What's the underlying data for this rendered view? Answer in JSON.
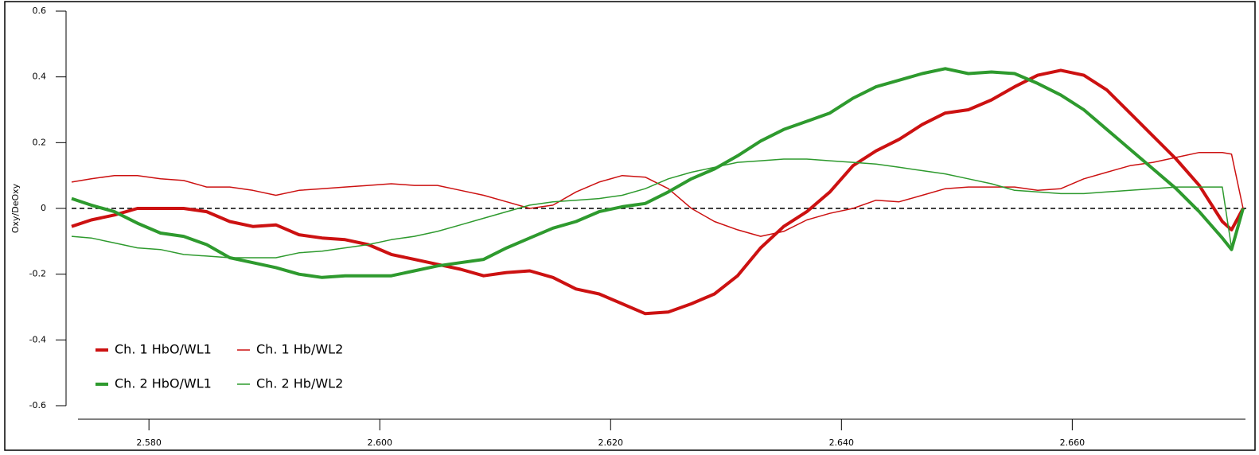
{
  "chart_data": {
    "type": "line",
    "y_label": "Oxy/DeOxy",
    "x": [
      2.5733,
      2.575,
      2.577,
      2.579,
      2.581,
      2.583,
      2.585,
      2.587,
      2.589,
      2.591,
      2.593,
      2.595,
      2.597,
      2.599,
      2.601,
      2.603,
      2.605,
      2.607,
      2.609,
      2.611,
      2.613,
      2.615,
      2.617,
      2.619,
      2.621,
      2.623,
      2.625,
      2.627,
      2.629,
      2.631,
      2.633,
      2.635,
      2.637,
      2.639,
      2.641,
      2.643,
      2.645,
      2.647,
      2.649,
      2.651,
      2.653,
      2.655,
      2.657,
      2.659,
      2.661,
      2.663,
      2.665,
      2.667,
      2.669,
      2.671,
      2.673,
      2.6738,
      2.6748
    ],
    "series": [
      {
        "name": "Ch. 1 HbO/WL1",
        "color": "#cc1111",
        "width": 4,
        "values": [
          -0.055,
          -0.035,
          -0.02,
          0,
          0,
          0,
          -0.01,
          -0.04,
          -0.055,
          -0.05,
          -0.08,
          -0.09,
          -0.095,
          -0.11,
          -0.14,
          -0.155,
          -0.17,
          -0.185,
          -0.205,
          -0.195,
          -0.19,
          -0.21,
          -0.245,
          -0.26,
          -0.29,
          -0.32,
          -0.315,
          -0.29,
          -0.26,
          -0.205,
          -0.12,
          -0.055,
          -0.01,
          0.05,
          0.13,
          0.175,
          0.21,
          0.255,
          0.29,
          0.3,
          0.33,
          0.37,
          0.405,
          0.42,
          0.405,
          0.36,
          0.29,
          0.22,
          0.15,
          0.07,
          -0.04,
          -0.065,
          0
        ]
      },
      {
        "name": "Ch. 1 Hb/WL2",
        "color": "#cc1111",
        "width": 1.5,
        "values": [
          0.08,
          0.09,
          0.1,
          0.1,
          0.09,
          0.085,
          0.065,
          0.065,
          0.055,
          0.04,
          0.055,
          0.06,
          0.065,
          0.07,
          0.075,
          0.07,
          0.07,
          0.055,
          0.04,
          0.02,
          0,
          0.01,
          0.05,
          0.08,
          0.1,
          0.095,
          0.06,
          0,
          -0.04,
          -0.065,
          -0.085,
          -0.07,
          -0.035,
          -0.015,
          0,
          0.025,
          0.02,
          0.04,
          0.06,
          0.065,
          0.065,
          0.065,
          0.055,
          0.06,
          0.09,
          0.11,
          0.13,
          0.14,
          0.155,
          0.17,
          0.17,
          0.165,
          0
        ]
      },
      {
        "name": "Ch. 2 HbO/WL1",
        "color": "#2e9a2e",
        "width": 4,
        "values": [
          0.03,
          0.01,
          -0.01,
          -0.045,
          -0.075,
          -0.085,
          -0.11,
          -0.15,
          -0.165,
          -0.18,
          -0.2,
          -0.21,
          -0.205,
          -0.205,
          -0.205,
          -0.19,
          -0.175,
          -0.165,
          -0.155,
          -0.12,
          -0.09,
          -0.06,
          -0.04,
          -0.01,
          0.005,
          0.015,
          0.05,
          0.09,
          0.12,
          0.16,
          0.205,
          0.24,
          0.265,
          0.29,
          0.335,
          0.37,
          0.39,
          0.41,
          0.425,
          0.41,
          0.415,
          0.41,
          0.38,
          0.345,
          0.3,
          0.24,
          0.18,
          0.12,
          0.06,
          -0.01,
          -0.09,
          -0.125,
          0
        ]
      },
      {
        "name": "Ch. 2 Hb/WL2",
        "color": "#2e9a2e",
        "width": 1.5,
        "values": [
          -0.085,
          -0.09,
          -0.105,
          -0.12,
          -0.125,
          -0.14,
          -0.145,
          -0.15,
          -0.15,
          -0.15,
          -0.135,
          -0.13,
          -0.12,
          -0.11,
          -0.095,
          -0.085,
          -0.07,
          -0.05,
          -0.03,
          -0.01,
          0.01,
          0.02,
          0.025,
          0.03,
          0.04,
          0.06,
          0.09,
          0.11,
          0.125,
          0.14,
          0.145,
          0.15,
          0.15,
          0.145,
          0.14,
          0.135,
          0.125,
          0.115,
          0.105,
          0.09,
          0.075,
          0.055,
          0.05,
          0.045,
          0.045,
          0.05,
          0.055,
          0.06,
          0.065,
          0.065,
          0.065,
          -0.12,
          0
        ]
      }
    ],
    "xlim": [
      2.5733,
      2.6748
    ],
    "xticks": [
      {
        "value": 2.58,
        "label": "2.580"
      },
      {
        "value": 2.6,
        "label": "2.600"
      },
      {
        "value": 2.62,
        "label": "2.620"
      },
      {
        "value": 2.64,
        "label": "2.640"
      },
      {
        "value": 2.66,
        "label": "2.660"
      }
    ],
    "ylim": [
      -0.6,
      0.6
    ],
    "yticks": [
      0.6,
      0.4,
      0.2,
      0,
      -0.2,
      -0.4,
      -0.6
    ],
    "hline": 0,
    "legend": "lower left",
    "grid": false
  }
}
